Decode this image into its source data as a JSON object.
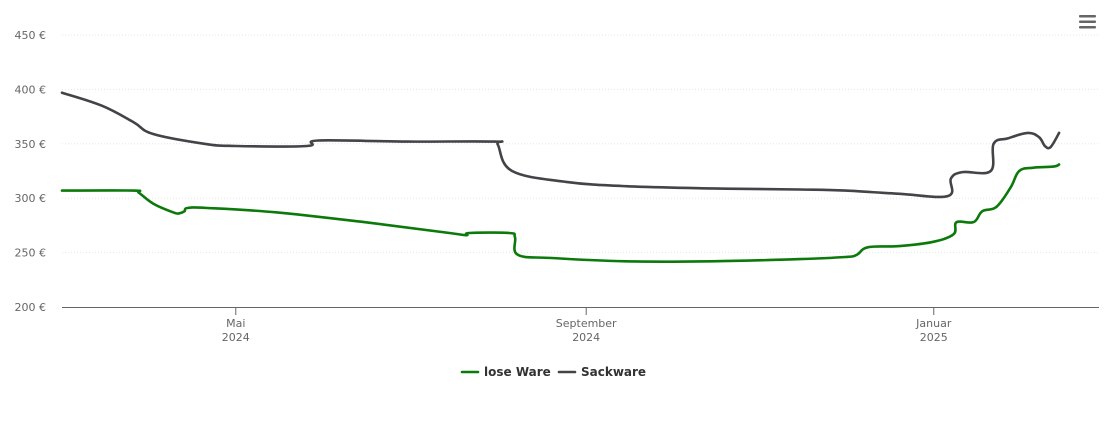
{
  "chart_data": {
    "type": "line",
    "title": "",
    "xlabel": "",
    "ylabel": "",
    "ylim": [
      200,
      450
    ],
    "y_ticks": [
      200,
      250,
      300,
      350,
      400,
      450
    ],
    "y_tick_labels": [
      "200 €",
      "250 €",
      "300 €",
      "350 €",
      "400 €",
      "450 €"
    ],
    "xlim": [
      "2024-03-01",
      "2025-02-28"
    ],
    "x_ticks": [
      {
        "date": "2024-05-01",
        "label_month": "Mai",
        "label_year": "2024"
      },
      {
        "date": "2024-09-01",
        "label_month": "September",
        "label_year": "2024"
      },
      {
        "date": "2025-01-01",
        "label_month": "Januar",
        "label_year": "2025"
      }
    ],
    "grid": true,
    "legend_position": "bottom-center",
    "series": [
      {
        "name": "lose Ware",
        "color": "#0b7a0b",
        "points": [
          [
            "2024-03-01",
            307
          ],
          [
            "2024-03-26",
            307
          ],
          [
            "2024-03-28",
            305
          ],
          [
            "2024-04-02",
            295
          ],
          [
            "2024-04-09",
            287
          ],
          [
            "2024-04-11",
            286
          ],
          [
            "2024-04-13",
            288
          ],
          [
            "2024-04-14",
            291
          ],
          [
            "2024-04-21",
            291
          ],
          [
            "2024-05-15",
            287
          ],
          [
            "2024-06-15",
            278
          ],
          [
            "2024-07-15",
            268
          ],
          [
            "2024-07-21",
            266
          ],
          [
            "2024-07-22",
            268
          ],
          [
            "2024-08-05",
            268
          ],
          [
            "2024-08-07",
            264
          ],
          [
            "2024-08-08",
            248
          ],
          [
            "2024-08-20",
            245
          ],
          [
            "2024-09-15",
            242
          ],
          [
            "2024-10-15",
            242
          ],
          [
            "2024-11-15",
            244
          ],
          [
            "2024-12-01",
            246
          ],
          [
            "2024-12-05",
            248
          ],
          [
            "2024-12-09",
            255
          ],
          [
            "2024-12-20",
            256
          ],
          [
            "2025-01-01",
            260
          ],
          [
            "2025-01-08",
            267
          ],
          [
            "2025-01-09",
            278
          ],
          [
            "2025-01-15",
            278
          ],
          [
            "2025-01-18",
            288
          ],
          [
            "2025-01-23",
            292
          ],
          [
            "2025-01-28",
            310
          ],
          [
            "2025-01-31",
            325
          ],
          [
            "2025-02-05",
            328
          ],
          [
            "2025-02-12",
            329
          ],
          [
            "2025-02-14",
            331
          ]
        ]
      },
      {
        "name": "Sackware",
        "color": "#434348",
        "points": [
          [
            "2024-03-01",
            397
          ],
          [
            "2024-03-15",
            385
          ],
          [
            "2024-03-26",
            370
          ],
          [
            "2024-04-02",
            359
          ],
          [
            "2024-04-20",
            350
          ],
          [
            "2024-05-01",
            348
          ],
          [
            "2024-05-26",
            348
          ],
          [
            "2024-05-30",
            353
          ],
          [
            "2024-06-30",
            352
          ],
          [
            "2024-07-31",
            352
          ],
          [
            "2024-08-01",
            349
          ],
          [
            "2024-08-06",
            325
          ],
          [
            "2024-08-25",
            315
          ],
          [
            "2024-09-15",
            311
          ],
          [
            "2024-10-15",
            309
          ],
          [
            "2024-11-15",
            308
          ],
          [
            "2024-12-01",
            307
          ],
          [
            "2024-12-20",
            304
          ],
          [
            "2025-01-06",
            302
          ],
          [
            "2025-01-07",
            318
          ],
          [
            "2025-01-11",
            324
          ],
          [
            "2025-01-21",
            325
          ],
          [
            "2025-01-22",
            350
          ],
          [
            "2025-01-27",
            355
          ],
          [
            "2025-02-03",
            360
          ],
          [
            "2025-02-07",
            356
          ],
          [
            "2025-02-09",
            348
          ],
          [
            "2025-02-11",
            347
          ],
          [
            "2025-02-14",
            360
          ]
        ]
      }
    ]
  },
  "menu": {
    "icon": "hamburger-menu-icon"
  }
}
